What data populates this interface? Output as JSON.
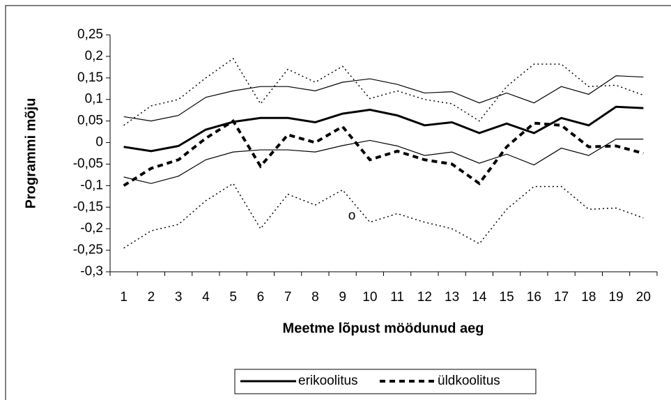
{
  "chart_data": {
    "type": "line",
    "x_label": "Meetme lõpust möödunud aeg",
    "y_label": "Programmi mõju",
    "annotation": "o",
    "categories": [
      "1",
      "2",
      "3",
      "4",
      "5",
      "6",
      "7",
      "8",
      "9",
      "10",
      "11",
      "12",
      "13",
      "14",
      "15",
      "16",
      "17",
      "18",
      "19",
      "20"
    ],
    "ylim": [
      -0.3,
      0.25
    ],
    "yticks": [
      {
        "value": -0.3,
        "label": "-0,3"
      },
      {
        "value": -0.25,
        "label": "-0,25"
      },
      {
        "value": -0.2,
        "label": "-0,2"
      },
      {
        "value": -0.15,
        "label": "-0,15"
      },
      {
        "value": -0.1,
        "label": "-0,1"
      },
      {
        "value": -0.05,
        "label": "-0,05"
      },
      0,
      {
        "value": 0.05,
        "label": "0,05"
      },
      {
        "value": 0.1,
        "label": "0,1"
      },
      {
        "value": 0.15,
        "label": "0,15"
      },
      {
        "value": 0.2,
        "label": "0,2"
      },
      {
        "value": 0.25,
        "label": "0,25"
      }
    ],
    "series": [
      {
        "name": "erikoolitus",
        "color": "#000000",
        "width": 3,
        "dash": "none",
        "values": [
          -0.01,
          -0.02,
          -0.008,
          0.03,
          0.048,
          0.057,
          0.057,
          0.047,
          0.067,
          0.076,
          0.063,
          0.04,
          0.047,
          0.022,
          0.044,
          0.022,
          0.057,
          0.04,
          0.083,
          0.08
        ]
      },
      {
        "color": "#000000",
        "width": 1.2,
        "dash": "none",
        "values": [
          0.06,
          0.05,
          0.063,
          0.105,
          0.12,
          0.13,
          0.13,
          0.12,
          0.14,
          0.148,
          0.135,
          0.115,
          0.118,
          0.092,
          0.115,
          0.092,
          0.13,
          0.112,
          0.155,
          0.152
        ]
      },
      {
        "color": "#000000",
        "width": 1.2,
        "dash": "none",
        "values": [
          -0.08,
          -0.095,
          -0.078,
          -0.04,
          -0.022,
          -0.017,
          -0.017,
          -0.022,
          -0.007,
          0.005,
          -0.008,
          -0.03,
          -0.022,
          -0.048,
          -0.027,
          -0.052,
          -0.013,
          -0.03,
          0.008,
          0.008
        ]
      },
      {
        "name": "üldkoolitus",
        "color": "#000000",
        "width": 4,
        "dash": "8 6",
        "values": [
          -0.1,
          -0.06,
          -0.04,
          0.01,
          0.05,
          -0.055,
          0.018,
          0,
          0.037,
          -0.04,
          -0.02,
          -0.04,
          -0.05,
          -0.095,
          -0.01,
          0.045,
          0.04,
          -0.01,
          -0.008,
          -0.025
        ]
      },
      {
        "color": "#000000",
        "width": 1.5,
        "dash": "2 4",
        "values": [
          0.04,
          0.085,
          0.1,
          0.15,
          0.195,
          0.09,
          0.17,
          0.14,
          0.177,
          0.102,
          0.12,
          0.1,
          0.09,
          0.05,
          0.13,
          0.182,
          0.182,
          0.13,
          0.133,
          0.11
        ]
      },
      {
        "color": "#000000",
        "width": 1.5,
        "dash": "2 4",
        "values": [
          -0.245,
          -0.205,
          -0.19,
          -0.135,
          -0.095,
          -0.2,
          -0.12,
          -0.145,
          -0.11,
          -0.185,
          -0.165,
          -0.185,
          -0.2,
          -0.235,
          -0.155,
          -0.102,
          -0.102,
          -0.155,
          -0.152,
          -0.175
        ]
      }
    ]
  }
}
